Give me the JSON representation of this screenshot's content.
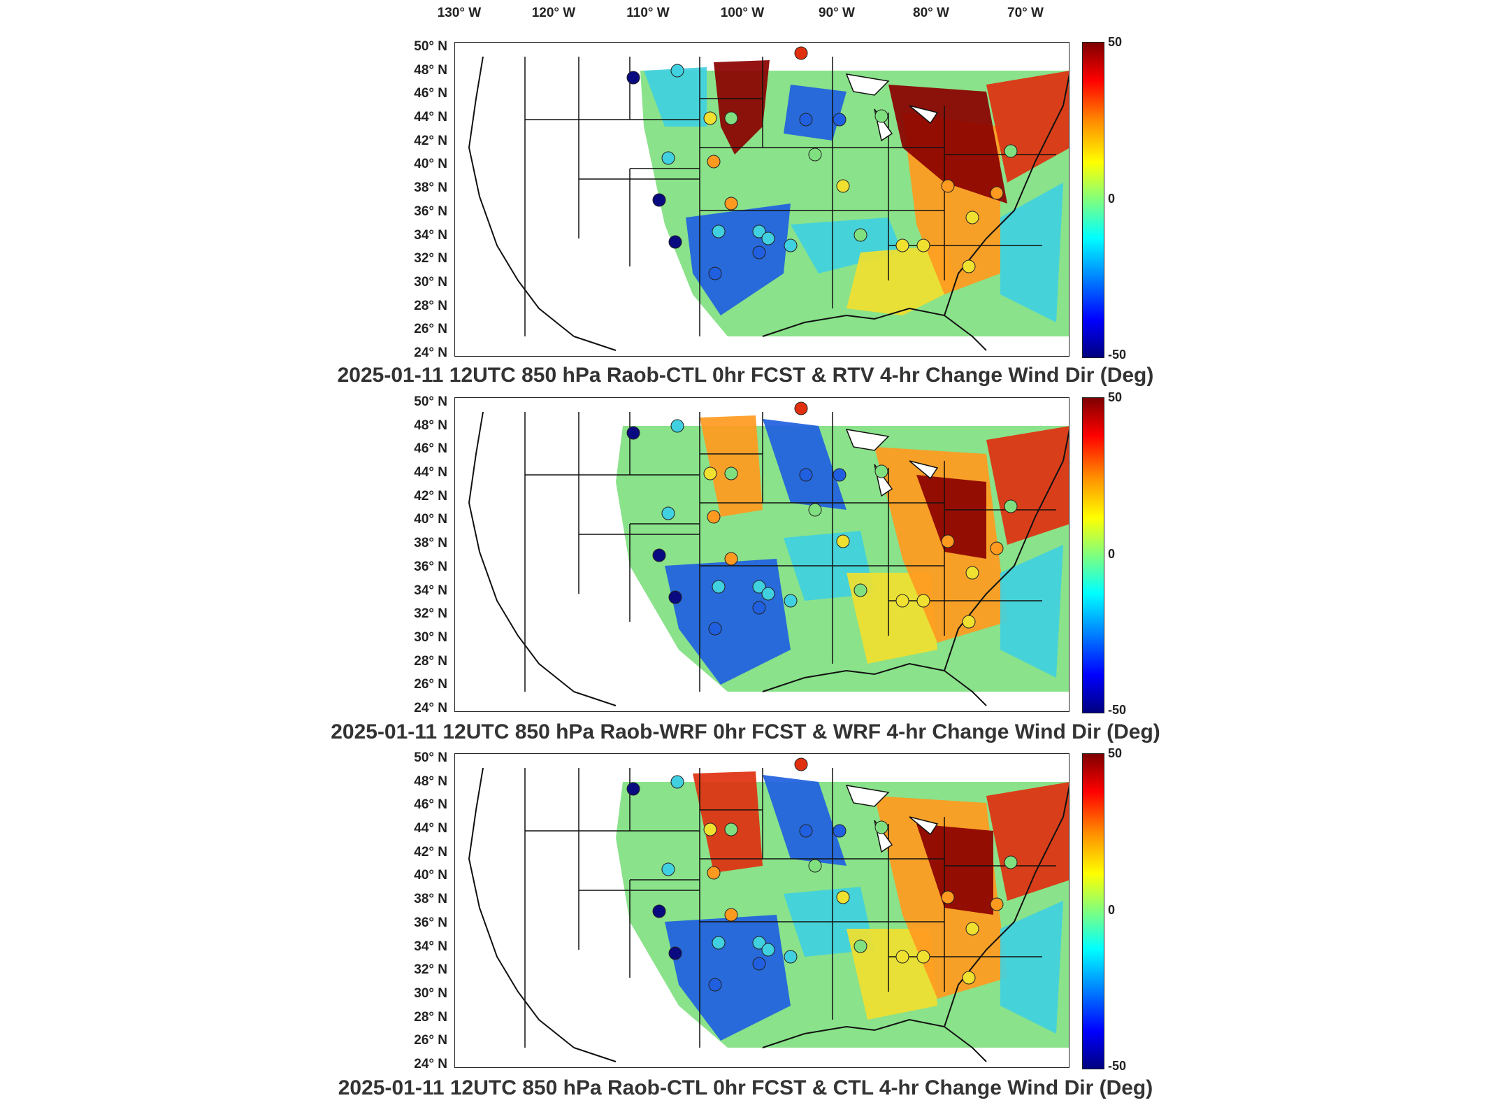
{
  "lon_labels": [
    "130° W",
    "120° W",
    "110° W",
    "100° W",
    "90° W",
    "80° W",
    "70° W"
  ],
  "lat_labels": [
    "50° N",
    "48° N",
    "46° N",
    "44° N",
    "42° N",
    "40° N",
    "38° N",
    "36° N",
    "34° N",
    "32° N",
    "30° N",
    "28° N",
    "26° N",
    "24° N"
  ],
  "colorbar": {
    "max": "50",
    "mid": "0",
    "min": "-50"
  },
  "panels": [
    {
      "title": "2025-01-11 12UTC 850 hPa Raob-CTL 0hr FCST & RTV 4-hr Change Wind Dir (Deg)"
    },
    {
      "title": "2025-01-11 12UTC 850 hPa Raob-WRF 0hr FCST & WRF 4-hr Change Wind Dir (Deg)"
    },
    {
      "title": "2025-01-11 12UTC 850 hPa Raob-CTL 0hr FCST & CTL 4-hr Change Wind Dir (Deg)"
    }
  ],
  "colors": {
    "deep_red": "#8b0000",
    "red": "#e03010",
    "orange": "#ff9a20",
    "yellow": "#f0e030",
    "green": "#80e080",
    "cyan": "#40d0e0",
    "blue": "#2060e0",
    "navy": "#0a0a80"
  }
}
